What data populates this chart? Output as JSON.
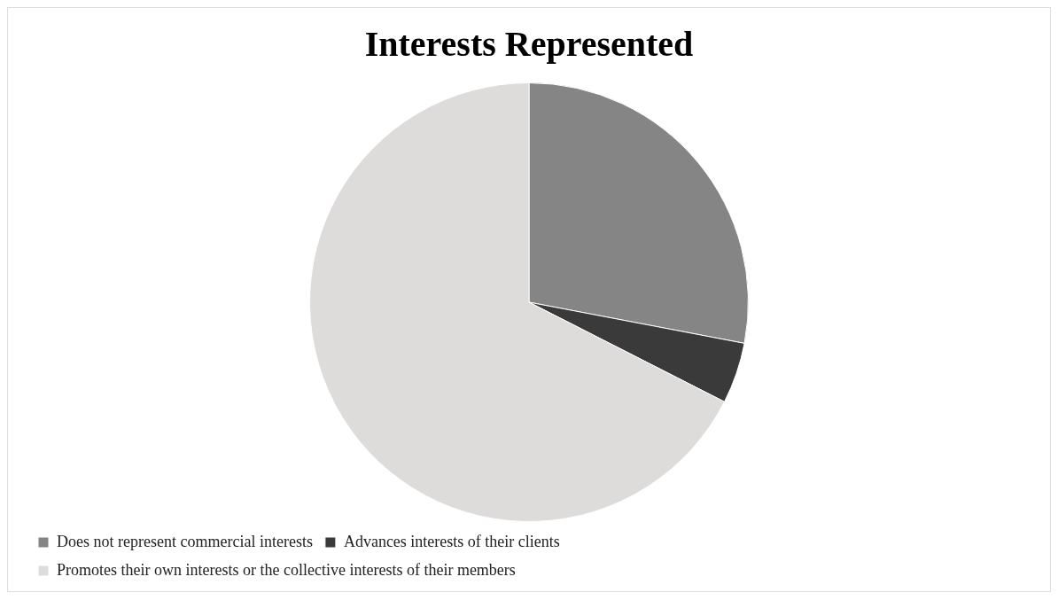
{
  "chart_data": {
    "type": "pie",
    "title": "Interests Represented",
    "categories": [
      "Does not represent commercial interests",
      "Advances interests of their clients",
      "Promotes their own interests or the collective interests of their members"
    ],
    "values": [
      28,
      4.5,
      67.5
    ],
    "colors": [
      "#858585",
      "#3a3a3a",
      "#dedbdb"
    ],
    "legend": "bottom"
  }
}
